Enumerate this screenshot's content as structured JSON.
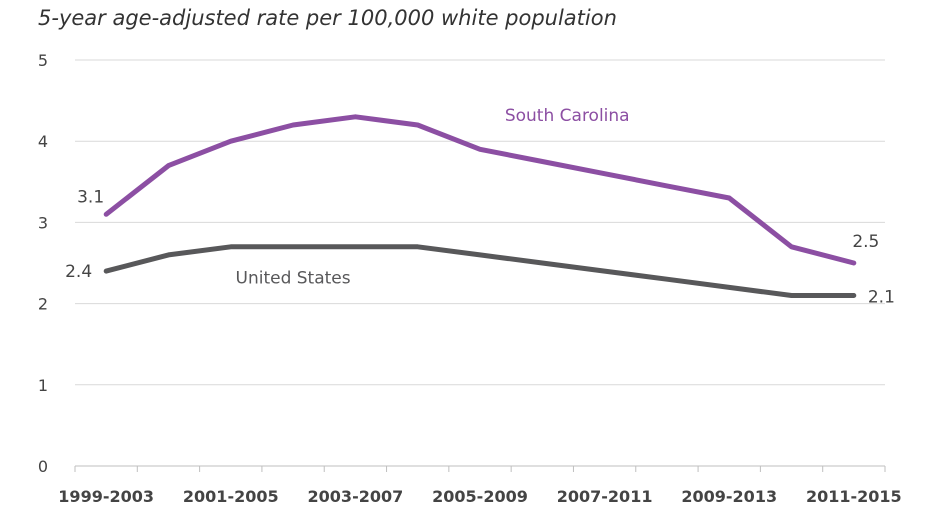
{
  "chart_data": {
    "type": "line",
    "title": "5-year age-adjusted rate per 100,000 white population",
    "xlabel": "",
    "ylabel": "",
    "ylim": [
      0,
      5
    ],
    "yticks": [
      "0",
      "1",
      "2",
      "3",
      "4",
      "5"
    ],
    "x_tick_labels": [
      "1999-2003",
      "2001-2005",
      "2003-2007",
      "2005-2009",
      "2007-2011",
      "2009-2013",
      "2011-2015"
    ],
    "grid": "horizontal",
    "legend": "inline labels",
    "series": [
      {
        "name": "South Carolina",
        "color": "#8c4fa3",
        "x": [
          1999.5,
          2000.5,
          2001.5,
          2002.5,
          2003.5,
          2004.5,
          2005.5,
          2006.5,
          2007.5,
          2008.5,
          2009.5,
          2010.5,
          2011.5
        ],
        "values": [
          3.1,
          3.7,
          4.0,
          4.2,
          4.3,
          4.2,
          3.9,
          3.75,
          3.6,
          3.45,
          3.3,
          2.7,
          2.5
        ],
        "start_label": "3.1",
        "end_label": "2.5"
      },
      {
        "name": "United States",
        "color": "#58585a",
        "x": [
          1999.5,
          2000.5,
          2001.5,
          2002.5,
          2003.5,
          2004.5,
          2005.5,
          2006.5,
          2007.5,
          2008.5,
          2009.5,
          2010.5,
          2011.5
        ],
        "values": [
          2.4,
          2.6,
          2.7,
          2.7,
          2.7,
          2.7,
          2.6,
          2.5,
          2.4,
          2.3,
          2.2,
          2.1,
          2.1
        ],
        "start_label": "2.4",
        "end_label": "2.1"
      }
    ]
  }
}
